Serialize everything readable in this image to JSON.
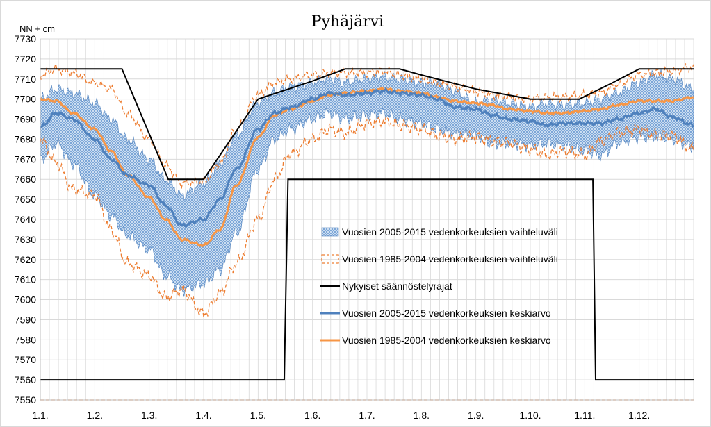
{
  "chart_data": {
    "type": "line",
    "title": "Pyhäjärvi",
    "ylabel": "NN + cm",
    "xlabel": "",
    "ylim": [
      7550,
      7730
    ],
    "y_ticks": [
      7550,
      7560,
      7570,
      7580,
      7590,
      7600,
      7610,
      7620,
      7630,
      7640,
      7650,
      7660,
      7670,
      7680,
      7690,
      7700,
      7710,
      7720,
      7730
    ],
    "x_axis": {
      "domain": [
        1,
        13
      ],
      "tick_labels": [
        "1.1.",
        "1.2.",
        "1.3.",
        "1.4.",
        "1.5.",
        "1.6.",
        "1.7.",
        "1.8.",
        "1.9.",
        "1.10.",
        "1.11.",
        "1.12."
      ]
    },
    "grid": true,
    "legend_position": "center-right",
    "colors": {
      "band_2005": "#9dc3e6",
      "band_1985": "#ed7d31",
      "regulation": "#000000",
      "mean_2005": "#4f81bd",
      "mean_1985": "#f79646",
      "grid": "#d9d9d9"
    },
    "series": [
      {
        "name": "Vuosien 2005-2015 vedenkorkeuksien vaihteluväli",
        "style": "band",
        "x": [
          1,
          1.3,
          1.6,
          2,
          2.3,
          2.6,
          3,
          3.3,
          3.6,
          4,
          4.3,
          4.6,
          5,
          5.3,
          5.6,
          6,
          6.3,
          6.6,
          7,
          7.3,
          7.6,
          8,
          8.3,
          8.6,
          9,
          9.3,
          9.6,
          10,
          10.3,
          10.6,
          11,
          11.3,
          11.6,
          12,
          12.3,
          12.6,
          13
        ],
        "upper": [
          7700,
          7705,
          7703,
          7698,
          7690,
          7680,
          7670,
          7660,
          7652,
          7658,
          7668,
          7682,
          7698,
          7703,
          7706,
          7708,
          7710,
          7708,
          7710,
          7711,
          7710,
          7708,
          7708,
          7704,
          7698,
          7700,
          7698,
          7696,
          7698,
          7697,
          7698,
          7700,
          7703,
          7708,
          7712,
          7710,
          7705
        ],
        "lower": [
          7670,
          7678,
          7668,
          7652,
          7642,
          7632,
          7625,
          7612,
          7605,
          7608,
          7615,
          7633,
          7665,
          7680,
          7685,
          7690,
          7693,
          7690,
          7692,
          7693,
          7690,
          7688,
          7685,
          7683,
          7682,
          7678,
          7678,
          7677,
          7678,
          7677,
          7674,
          7672,
          7678,
          7681,
          7681,
          7680,
          7676
        ]
      },
      {
        "name": "Vuosien 1985-2004 vedenkorkeuksien vaihteluväli",
        "style": "dashed-band",
        "x": [
          1,
          1.3,
          1.6,
          2,
          2.3,
          2.6,
          3,
          3.3,
          3.6,
          4,
          4.3,
          4.6,
          5,
          5.3,
          5.6,
          6,
          6.3,
          6.6,
          7,
          7.3,
          7.6,
          8,
          8.3,
          8.6,
          9,
          9.3,
          9.6,
          10,
          10.3,
          10.6,
          11,
          11.3,
          11.6,
          12,
          12.3,
          12.6,
          13
        ],
        "upper": [
          7712,
          7715,
          7713,
          7708,
          7705,
          7693,
          7680,
          7667,
          7658,
          7659,
          7668,
          7685,
          7702,
          7708,
          7710,
          7712,
          7713,
          7713,
          7713,
          7714,
          7712,
          7710,
          7708,
          7706,
          7704,
          7702,
          7701,
          7700,
          7701,
          7701,
          7702,
          7703,
          7707,
          7712,
          7713,
          7714,
          7716
        ],
        "lower": [
          7680,
          7668,
          7655,
          7652,
          7635,
          7618,
          7612,
          7601,
          7605,
          7593,
          7603,
          7618,
          7640,
          7660,
          7673,
          7680,
          7685,
          7683,
          7688,
          7689,
          7687,
          7685,
          7682,
          7680,
          7681,
          7679,
          7678,
          7675,
          7672,
          7674,
          7672,
          7679,
          7683,
          7685,
          7682,
          7682,
          7675
        ]
      },
      {
        "name": "Nykyiset säännöstelyrajat",
        "style": "solid",
        "upper_x": [
          1,
          2.5,
          3.35,
          4,
          5,
          6,
          6.6,
          7.6,
          8,
          9,
          10,
          10.9,
          11.5,
          12,
          13
        ],
        "upper_y": [
          7715,
          7715,
          7660,
          7660,
          7700,
          7709,
          7715,
          7715,
          7712,
          7705,
          7700,
          7700,
          7708,
          7715,
          7715
        ],
        "lower_x": [
          1,
          5.48,
          5.55,
          11.15,
          11.2,
          13
        ],
        "lower_y": [
          7560,
          7560,
          7660,
          7660,
          7560,
          7560
        ]
      },
      {
        "name": "Vuosien 2005-2015 vedenkorkeuksien keskiarvo",
        "style": "solid",
        "x": [
          1,
          1.3,
          1.6,
          2,
          2.3,
          2.6,
          3,
          3.3,
          3.6,
          4,
          4.3,
          4.6,
          5,
          5.3,
          5.6,
          6,
          6.3,
          6.6,
          7,
          7.3,
          7.6,
          8,
          8.3,
          8.6,
          9,
          9.3,
          9.6,
          10,
          10.3,
          10.6,
          11,
          11.3,
          11.6,
          12,
          12.3,
          12.6,
          13
        ],
        "y": [
          7686,
          7693,
          7690,
          7680,
          7670,
          7662,
          7657,
          7647,
          7637,
          7640,
          7650,
          7665,
          7685,
          7693,
          7696,
          7700,
          7703,
          7702,
          7703,
          7704,
          7703,
          7702,
          7700,
          7696,
          7695,
          7692,
          7690,
          7689,
          7687,
          7688,
          7688,
          7688,
          7690,
          7693,
          7695,
          7691,
          7687
        ]
      },
      {
        "name": "Vuosien 1985-2004 vedenkorkeuksien keskiarvo",
        "style": "solid",
        "x": [
          1,
          1.3,
          1.6,
          2,
          2.3,
          2.6,
          3,
          3.3,
          3.6,
          4,
          4.3,
          4.6,
          5,
          5.3,
          5.6,
          6,
          6.3,
          6.6,
          7,
          7.3,
          7.6,
          8,
          8.3,
          8.6,
          9,
          9.3,
          9.6,
          10,
          10.3,
          10.6,
          11,
          11.3,
          11.6,
          12,
          12.3,
          12.6,
          13
        ],
        "y": [
          7700,
          7699,
          7693,
          7685,
          7674,
          7662,
          7651,
          7640,
          7630,
          7627,
          7635,
          7657,
          7681,
          7692,
          7695,
          7699,
          7702,
          7703,
          7704,
          7705,
          7704,
          7703,
          7701,
          7699,
          7698,
          7697,
          7695,
          7694,
          7693,
          7693,
          7694,
          7695,
          7697,
          7699,
          7699,
          7699,
          7701
        ]
      },
      {
        "name": "",
        "style": "dashed",
        "x": [
          1,
          13
        ],
        "y": [
          7550,
          7550
        ]
      }
    ]
  }
}
